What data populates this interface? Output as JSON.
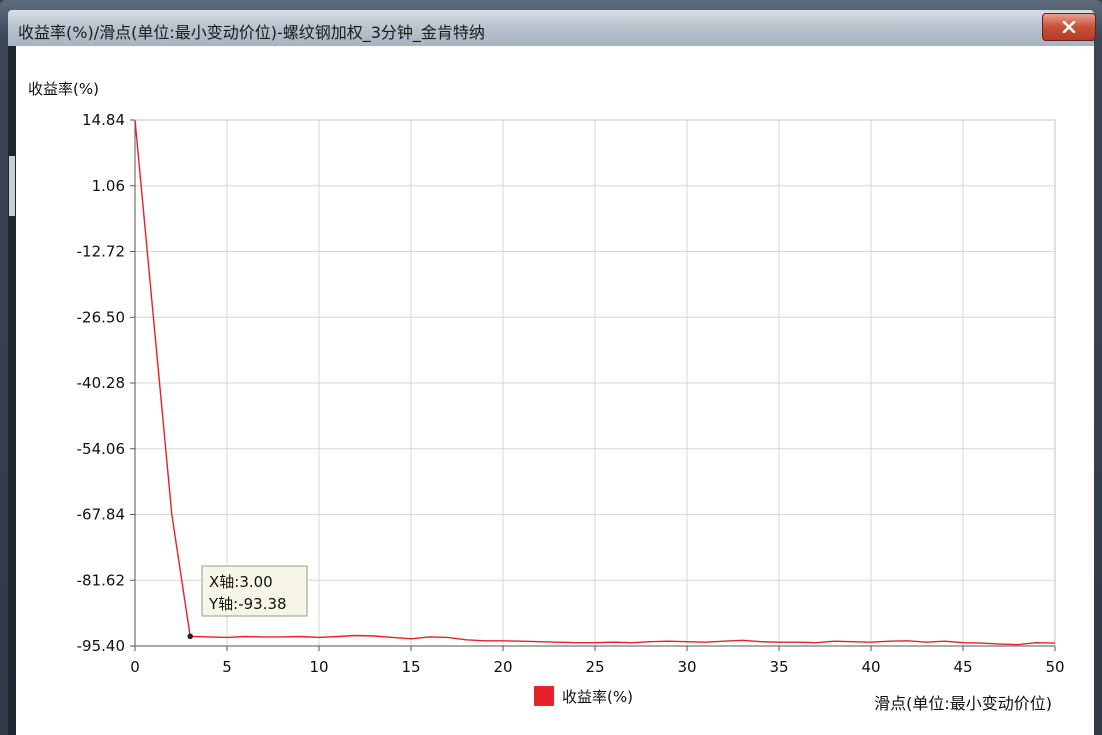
{
  "window": {
    "title": "收益率(%)/滑点(单位:最小变动价位)-螺纹钢加权_3分钟_金肯特纳",
    "close_icon": "close-icon"
  },
  "colors": {
    "series": "#e8202a",
    "grid": "#d7d7d7",
    "tooltip_bg": "#f7f6e6"
  },
  "tooltip": {
    "x_text": "X轴:3.00",
    "y_text": "Y轴:-93.38"
  },
  "chart_data": {
    "type": "line",
    "ylabel": "收益率(%)",
    "xlabel": "滑点(单位:最小变动价位)",
    "xlim": [
      0,
      50
    ],
    "ylim": [
      -95.4,
      14.84
    ],
    "x_ticks": [
      "0",
      "5",
      "10",
      "15",
      "20",
      "25",
      "30",
      "35",
      "40",
      "45",
      "50"
    ],
    "y_ticks": [
      "14.84",
      "1.06",
      "-12.72",
      "-26.50",
      "-40.28",
      "-54.06",
      "-67.84",
      "-81.62",
      "-95.40"
    ],
    "grid": true,
    "legend": {
      "position": "bottom-center"
    },
    "series": [
      {
        "name": "收益率(%)",
        "x": [
          0,
          1,
          2,
          3,
          4,
          5,
          6,
          7,
          8,
          9,
          10,
          11,
          12,
          13,
          14,
          15,
          16,
          17,
          18,
          19,
          20,
          21,
          22,
          23,
          24,
          25,
          26,
          27,
          28,
          29,
          30,
          31,
          32,
          33,
          34,
          35,
          36,
          37,
          38,
          39,
          40,
          41,
          42,
          43,
          44,
          45,
          46,
          47,
          48,
          49,
          50
        ],
        "values": [
          14.84,
          -26.5,
          -67.8,
          -93.38,
          -93.5,
          -93.6,
          -93.4,
          -93.5,
          -93.5,
          -93.4,
          -93.6,
          -93.4,
          -93.2,
          -93.3,
          -93.6,
          -93.9,
          -93.5,
          -93.6,
          -94.1,
          -94.3,
          -94.3,
          -94.4,
          -94.5,
          -94.6,
          -94.7,
          -94.7,
          -94.6,
          -94.7,
          -94.5,
          -94.4,
          -94.5,
          -94.6,
          -94.4,
          -94.2,
          -94.5,
          -94.6,
          -94.6,
          -94.7,
          -94.4,
          -94.5,
          -94.6,
          -94.4,
          -94.3,
          -94.6,
          -94.4,
          -94.7,
          -94.8,
          -95.0,
          -95.1,
          -94.7,
          -94.8
        ]
      }
    ],
    "highlight_point": {
      "x": 3.0,
      "y": -93.38
    }
  }
}
